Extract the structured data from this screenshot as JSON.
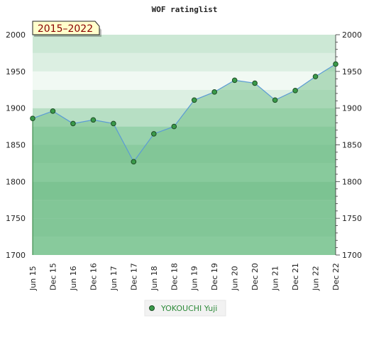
{
  "chart_data": {
    "type": "area",
    "title": "WOF ratinglist",
    "period_badge": "2015–2022",
    "xlabel": "",
    "ylabel": "",
    "ylim": [
      1700,
      2000
    ],
    "yticks": [
      1700,
      1750,
      1800,
      1850,
      1900,
      1950,
      2000
    ],
    "categories": [
      "Jun 15",
      "Dec 15",
      "Jun 16",
      "Dec 16",
      "Jun 17",
      "Dec 17",
      "Jun 18",
      "Dec 18",
      "Jun 19",
      "Dec 19",
      "Jun 20",
      "Dec 20",
      "Jun 21",
      "Dec 21",
      "Jun 22",
      "Dec 22"
    ],
    "series": [
      {
        "name": "YOKOUCHI Yuji",
        "values": [
          1886,
          1896,
          1879,
          1884,
          1879,
          1827,
          1865,
          1875,
          1911,
          1922,
          1938,
          1934,
          1911,
          1924,
          1943,
          1960
        ]
      }
    ],
    "legend_position": "bottom-center",
    "grid": true,
    "dual_y_axis": true,
    "colors": {
      "line": "#5b9bd5",
      "marker_fill": "#3a9a4a",
      "area_fill": "#7cc28f",
      "band_dark": "#7dc494",
      "band_light": "#b2dcc0",
      "badge_bg": "#ffffcc"
    }
  }
}
